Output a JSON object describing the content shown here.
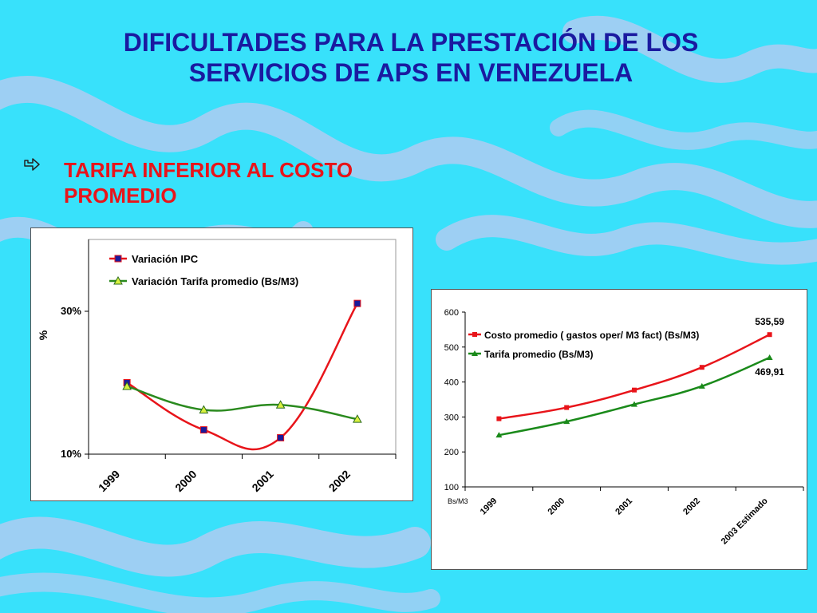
{
  "slide": {
    "title_line1": "DIFICULTADES PARA LA PRESTACIÓN DE LOS",
    "title_line2": "SERVICIOS DE APS EN VENEZUELA",
    "bullet_line1": "TARIFA INFERIOR AL COSTO",
    "bullet_line2": "PROMEDIO"
  },
  "colors": {
    "background": "#38e1fb",
    "wave": "#a9cdf2",
    "title": "#1a1aa0",
    "bullet_text": "#e8141a",
    "ipc_line": "#e8141a",
    "ipc_marker": "#1a1a9a",
    "tarifa1_line": "#2a8a1e",
    "tarifa1_marker": "#d8f040",
    "costo_line": "#e8141a",
    "tarifa2_line": "#1a8a1a"
  },
  "icons": {
    "bullet": "hollow-arrow-icon"
  },
  "chart_data": [
    {
      "type": "line",
      "categories": [
        "1999",
        "2000",
        "2001",
        "2002"
      ],
      "series": [
        {
          "name": "Variación IPC",
          "values": [
            20.0,
            13.4,
            12.3,
            31.1
          ]
        },
        {
          "name": "Variación Tarifa promedio (Bs/M3)",
          "values": [
            19.5,
            16.2,
            16.9,
            14.9
          ]
        }
      ],
      "ylabel": "%",
      "ylim": [
        10,
        30
      ],
      "yticks": [
        {
          "value": 10,
          "label": "10%"
        },
        {
          "value": 30,
          "label": "30%"
        }
      ],
      "grid": false,
      "legend": "top-left"
    },
    {
      "type": "line",
      "categories": [
        "1999",
        "2000",
        "2001",
        "2002",
        "2003 Estimado"
      ],
      "series": [
        {
          "name": "Costo promedio  ( gastos oper/ M3 fact)  (Bs/M3)",
          "values": [
            295,
            327,
            377,
            442,
            535.59
          ]
        },
        {
          "name": "Tarifa promedio (Bs/M3)",
          "values": [
            248,
            287,
            336,
            388,
            469.91
          ]
        }
      ],
      "unit_label": "Bs/M3",
      "ylim": [
        100,
        600
      ],
      "yticks": [
        {
          "value": 100,
          "label": "100"
        },
        {
          "value": 200,
          "label": "200"
        },
        {
          "value": 300,
          "label": "300"
        },
        {
          "value": 400,
          "label": "400"
        },
        {
          "value": 500,
          "label": "500"
        },
        {
          "value": 600,
          "label": "600"
        }
      ],
      "data_labels": [
        {
          "series": 0,
          "index": 4,
          "text": "535,59"
        },
        {
          "series": 1,
          "index": 4,
          "text": "469,91"
        }
      ],
      "grid": false,
      "legend": "top-left"
    }
  ]
}
